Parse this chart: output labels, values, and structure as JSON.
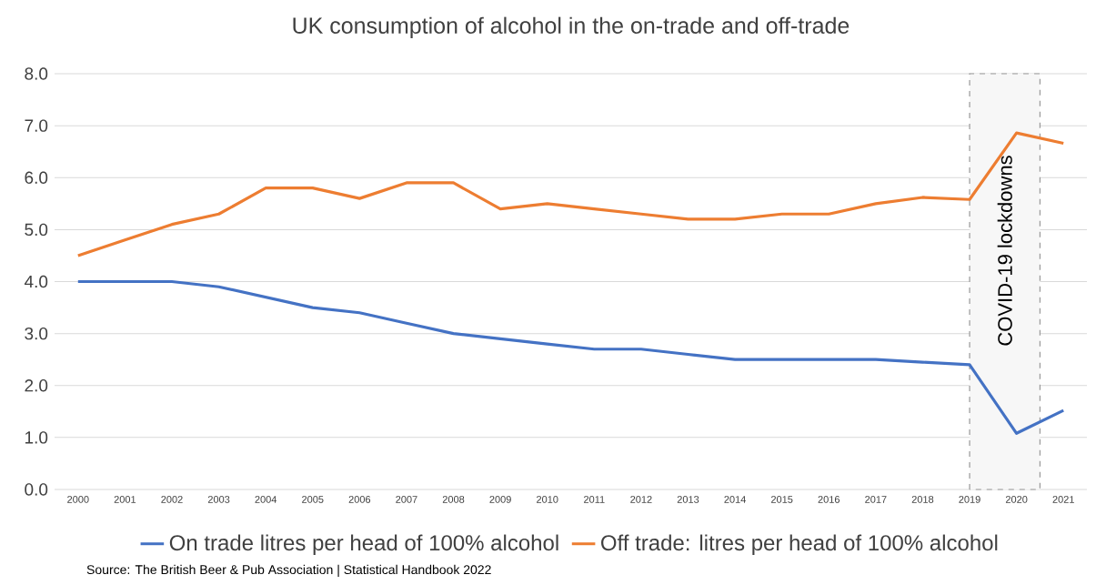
{
  "chart_data": {
    "type": "line",
    "title": "UK consumption of alcohol in the on-trade and off-trade",
    "x": [
      2000,
      2001,
      2002,
      2003,
      2004,
      2005,
      2006,
      2007,
      2008,
      2009,
      2010,
      2011,
      2012,
      2013,
      2014,
      2015,
      2016,
      2017,
      2018,
      2019,
      2020,
      2021
    ],
    "series": [
      {
        "name": "On trade litres per head of 100% alcohol",
        "color": "#4472c4",
        "values": [
          4.0,
          4.0,
          4.0,
          3.9,
          3.7,
          3.5,
          3.4,
          3.2,
          3.0,
          2.9,
          2.8,
          2.7,
          2.7,
          2.6,
          2.5,
          2.5,
          2.5,
          2.5,
          2.45,
          2.4,
          1.08,
          1.52
        ]
      },
      {
        "name": "Off trade: litres per head of 100% alcohol",
        "color": "#ed7d31",
        "values": [
          4.5,
          4.8,
          5.1,
          5.3,
          5.8,
          5.8,
          5.6,
          5.9,
          5.9,
          5.4,
          5.5,
          5.4,
          5.3,
          5.2,
          5.2,
          5.3,
          5.3,
          5.5,
          5.62,
          5.58,
          6.86,
          6.66
        ]
      }
    ],
    "xlim": [
      1999.5,
      2021.5
    ],
    "xticks": [
      2000,
      2001,
      2002,
      2003,
      2004,
      2005,
      2006,
      2007,
      2008,
      2009,
      2010,
      2011,
      2012,
      2013,
      2014,
      2015,
      2016,
      2017,
      2018,
      2019,
      2020,
      2021
    ],
    "ylim": [
      0,
      8
    ],
    "yticks": [
      {
        "value": 0,
        "label": "0.0"
      },
      {
        "value": 1,
        "label": "1.0"
      },
      {
        "value": 2,
        "label": "2.0"
      },
      {
        "value": 3,
        "label": "3.0"
      },
      {
        "value": 4,
        "label": "4.0"
      },
      {
        "value": 5,
        "label": "5.0"
      },
      {
        "value": 6,
        "label": "6.0"
      },
      {
        "value": 7,
        "label": "7.0"
      },
      {
        "value": 8,
        "label": "8.0"
      }
    ],
    "bands": [
      {
        "axis": "x",
        "from": 2019,
        "to": 2020.5,
        "label": "COVID-19 lockdowns",
        "color": "#f7f7f7"
      }
    ],
    "grid": "y",
    "legend": "bottom",
    "marker": "none",
    "line_style": "solid",
    "annotations": [
      "Source: The British Beer & Pub Association | Statistical Handbook 2022"
    ]
  }
}
